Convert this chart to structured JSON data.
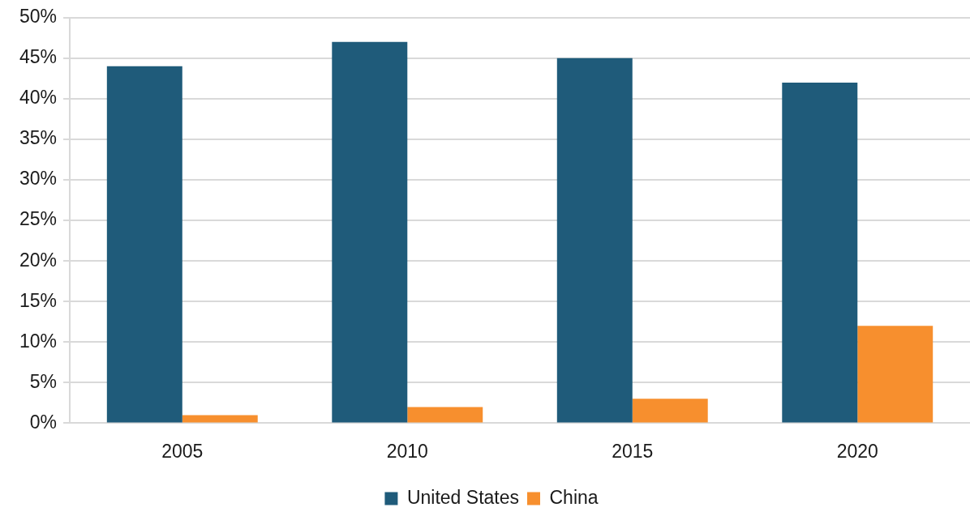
{
  "chart_data": {
    "type": "bar",
    "categories": [
      "2005",
      "2010",
      "2015",
      "2020"
    ],
    "series": [
      {
        "name": "United States",
        "color": "#1f5b7a",
        "values": [
          44,
          47,
          45,
          42
        ]
      },
      {
        "name": "China",
        "color": "#f78f2e",
        "values": [
          1,
          2,
          3,
          12
        ]
      }
    ],
    "ylim": [
      0,
      50
    ],
    "yticks": [
      {
        "value": 0,
        "label": "0%"
      },
      {
        "value": 5,
        "label": "5%"
      },
      {
        "value": 10,
        "label": "10%"
      },
      {
        "value": 15,
        "label": "15%"
      },
      {
        "value": 20,
        "label": "20%"
      },
      {
        "value": 25,
        "label": "25%"
      },
      {
        "value": 30,
        "label": "30%"
      },
      {
        "value": 35,
        "label": "35%"
      },
      {
        "value": 40,
        "label": "40%"
      },
      {
        "value": 45,
        "label": "45%"
      },
      {
        "value": 50,
        "label": "50%"
      }
    ],
    "grid": "y",
    "legend": "bottom"
  }
}
